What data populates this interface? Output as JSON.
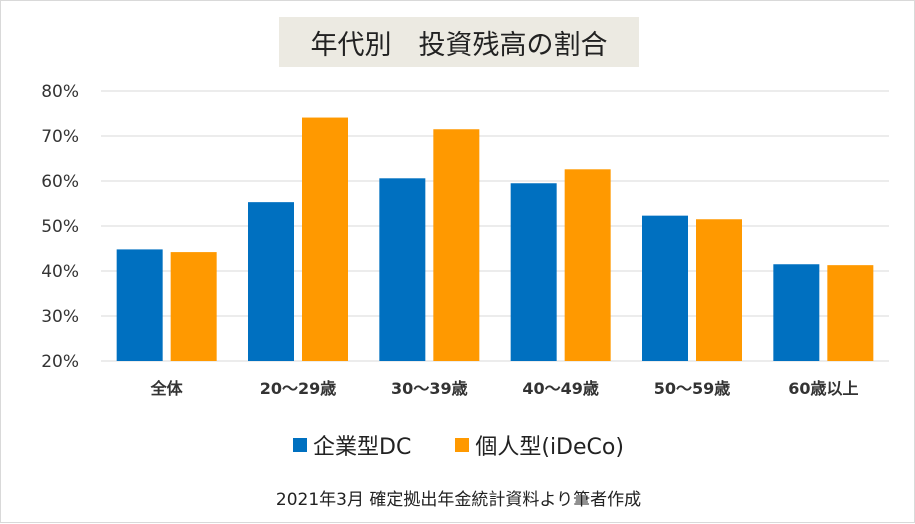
{
  "chart_data": {
    "type": "bar",
    "title": "年代別　投資残高の割合",
    "categories": [
      "全体",
      "20～29歳",
      "30～39歳",
      "40～49歳",
      "50～59歳",
      "60歳以上"
    ],
    "series": [
      {
        "name": "企業型DC",
        "color": "#0070c0",
        "values": [
          44.8,
          55.3,
          60.6,
          59.5,
          52.3,
          41.5
        ]
      },
      {
        "name": "個人型(iDeCo)",
        "color": "#ff9900",
        "values": [
          44.2,
          74.1,
          71.5,
          62.6,
          51.5,
          41.3
        ]
      }
    ],
    "ylim": [
      20,
      80
    ],
    "yticks": [
      "20%",
      "30%",
      "40%",
      "50%",
      "60%",
      "70%",
      "80%"
    ],
    "ytick_values": [
      20,
      30,
      40,
      50,
      60,
      70,
      80
    ],
    "grid": true,
    "legend_position": "bottom",
    "source_note": "2021年3月 確定拠出年金統計資料より筆者作成"
  }
}
